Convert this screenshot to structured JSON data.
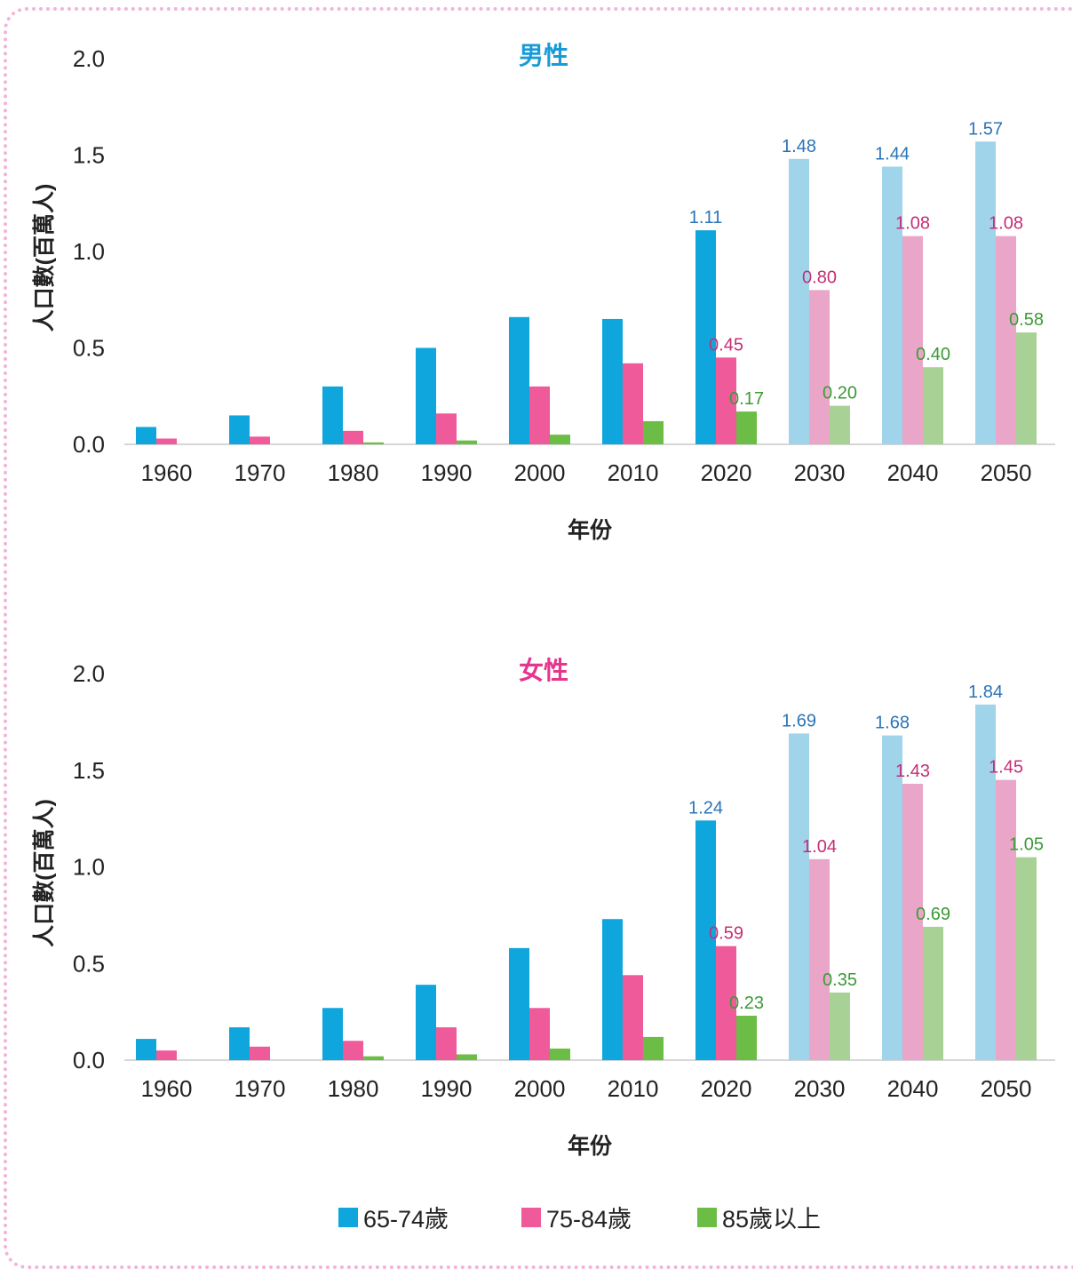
{
  "colors": {
    "s1": "#0ea6dc",
    "s2": "#ef5a9b",
    "s3": "#6bbd45",
    "s1_proj": "#9fd4eb",
    "s2_proj": "#eaa6c8",
    "s3_proj": "#a8d196",
    "l1": "#2a74b8",
    "l2": "#c42f76",
    "l3": "#3b9a36",
    "title_male": "#1a9bd7",
    "title_female": "#e6358f"
  },
  "legend": [
    {
      "name": "65-74歲",
      "color": "#0ea6dc"
    },
    {
      "name": "75-84歲",
      "color": "#ef5a9b"
    },
    {
      "name": "85歲以上",
      "color": "#6bbd45"
    }
  ],
  "chart_data": [
    {
      "type": "bar",
      "title": "男性",
      "xlabel": "年份",
      "ylabel": "人口數(百萬人)",
      "ylim": [
        0,
        2.0
      ],
      "yticks": [
        "0.0",
        "0.5",
        "1.0",
        "1.5",
        "2.0"
      ],
      "categories": [
        "1960",
        "1970",
        "1980",
        "1990",
        "2000",
        "2010",
        "2020",
        "2030",
        "2040",
        "2050"
      ],
      "projected_from": "2030",
      "series": [
        {
          "name": "65-74歲",
          "values": [
            0.09,
            0.15,
            0.3,
            0.5,
            0.66,
            0.65,
            1.11,
            1.48,
            1.44,
            1.57
          ],
          "labels": [
            null,
            null,
            null,
            null,
            null,
            null,
            "1.11",
            "1.48",
            "1.44",
            "1.57"
          ]
        },
        {
          "name": "75-84歲",
          "values": [
            0.03,
            0.04,
            0.07,
            0.16,
            0.3,
            0.42,
            0.45,
            0.8,
            1.08,
            1.08
          ],
          "labels": [
            null,
            null,
            null,
            null,
            null,
            null,
            "0.45",
            "0.80",
            "1.08",
            "1.08"
          ]
        },
        {
          "name": "85歲以上",
          "values": [
            0.0,
            0.0,
            0.01,
            0.02,
            0.05,
            0.12,
            0.17,
            0.2,
            0.4,
            0.58
          ],
          "labels": [
            null,
            null,
            null,
            null,
            null,
            null,
            "0.17",
            "0.20",
            "0.40",
            "0.58"
          ]
        }
      ]
    },
    {
      "type": "bar",
      "title": "女性",
      "xlabel": "年份",
      "ylabel": "人口數(百萬人)",
      "ylim": [
        0,
        2.0
      ],
      "yticks": [
        "0.0",
        "0.5",
        "1.0",
        "1.5",
        "2.0"
      ],
      "categories": [
        "1960",
        "1970",
        "1980",
        "1990",
        "2000",
        "2010",
        "2020",
        "2030",
        "2040",
        "2050"
      ],
      "projected_from": "2030",
      "series": [
        {
          "name": "65-74歲",
          "values": [
            0.11,
            0.17,
            0.27,
            0.39,
            0.58,
            0.73,
            1.24,
            1.69,
            1.68,
            1.84
          ],
          "labels": [
            null,
            null,
            null,
            null,
            null,
            null,
            "1.24",
            "1.69",
            "1.68",
            "1.84"
          ]
        },
        {
          "name": "75-84歲",
          "values": [
            0.05,
            0.07,
            0.1,
            0.17,
            0.27,
            0.44,
            0.59,
            1.04,
            1.43,
            1.45
          ],
          "labels": [
            null,
            null,
            null,
            null,
            null,
            null,
            "0.59",
            "1.04",
            "1.43",
            "1.45"
          ]
        },
        {
          "name": "85歲以上",
          "values": [
            0.0,
            0.0,
            0.02,
            0.03,
            0.06,
            0.12,
            0.23,
            0.35,
            0.69,
            1.05
          ],
          "labels": [
            null,
            null,
            null,
            null,
            null,
            null,
            "0.23",
            "0.35",
            "0.69",
            "1.05"
          ]
        }
      ]
    }
  ]
}
